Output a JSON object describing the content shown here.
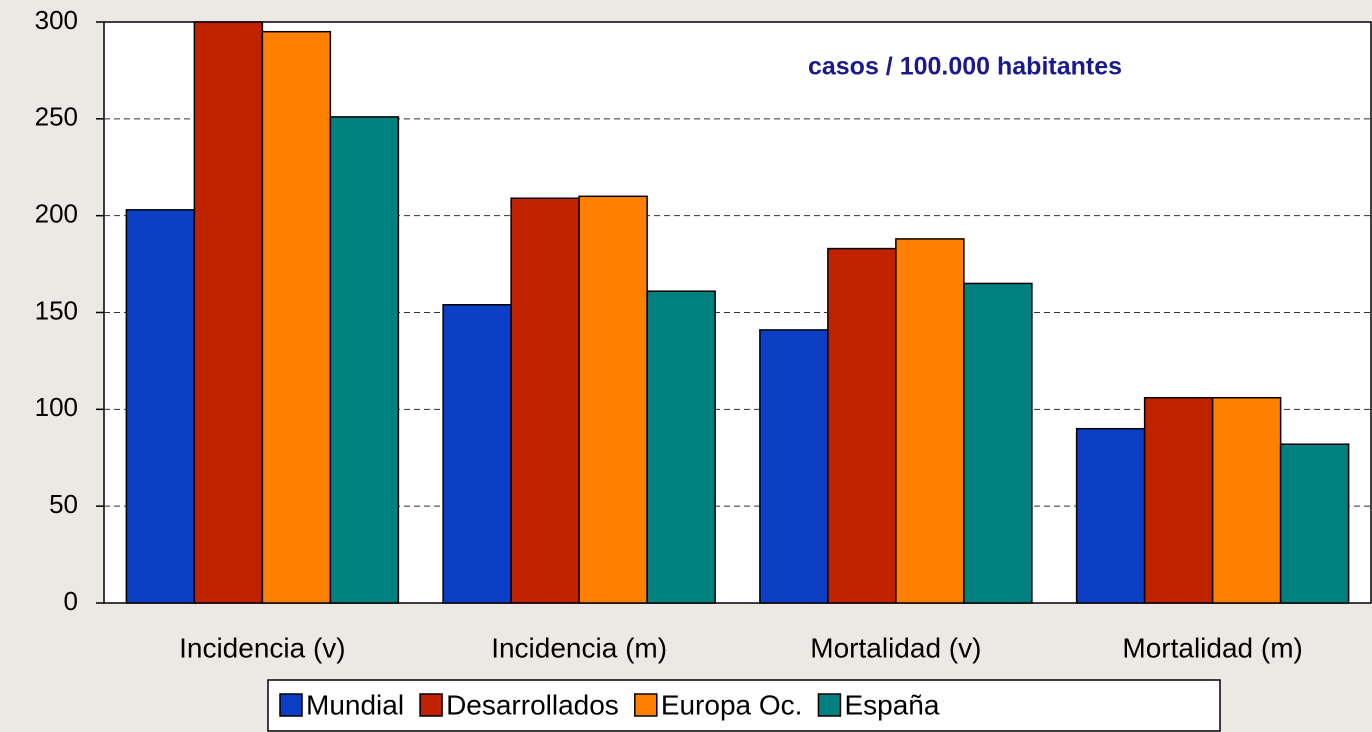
{
  "chart_data": {
    "type": "bar",
    "annotation": "casos / 100.000 habitantes",
    "categories": [
      "Incidencia (v)",
      "Incidencia (m)",
      "Mortalidad (v)",
      "Mortalidad (m)"
    ],
    "series": [
      {
        "name": "Mundial",
        "color": "#0c3ec6",
        "values": [
          203,
          154,
          141,
          90
        ]
      },
      {
        "name": "Desarrollados",
        "color": "#c02200",
        "values": [
          300,
          209,
          183,
          106
        ]
      },
      {
        "name": "Europa Oc.",
        "color": "#ff8000",
        "values": [
          295,
          210,
          188,
          106
        ]
      },
      {
        "name": "España",
        "color": "#00807f",
        "values": [
          251,
          161,
          165,
          82
        ]
      }
    ],
    "ylim": [
      0,
      300
    ],
    "yticks": [
      0,
      50,
      100,
      150,
      200,
      250,
      300
    ],
    "grid": true,
    "legend": "bottom"
  }
}
